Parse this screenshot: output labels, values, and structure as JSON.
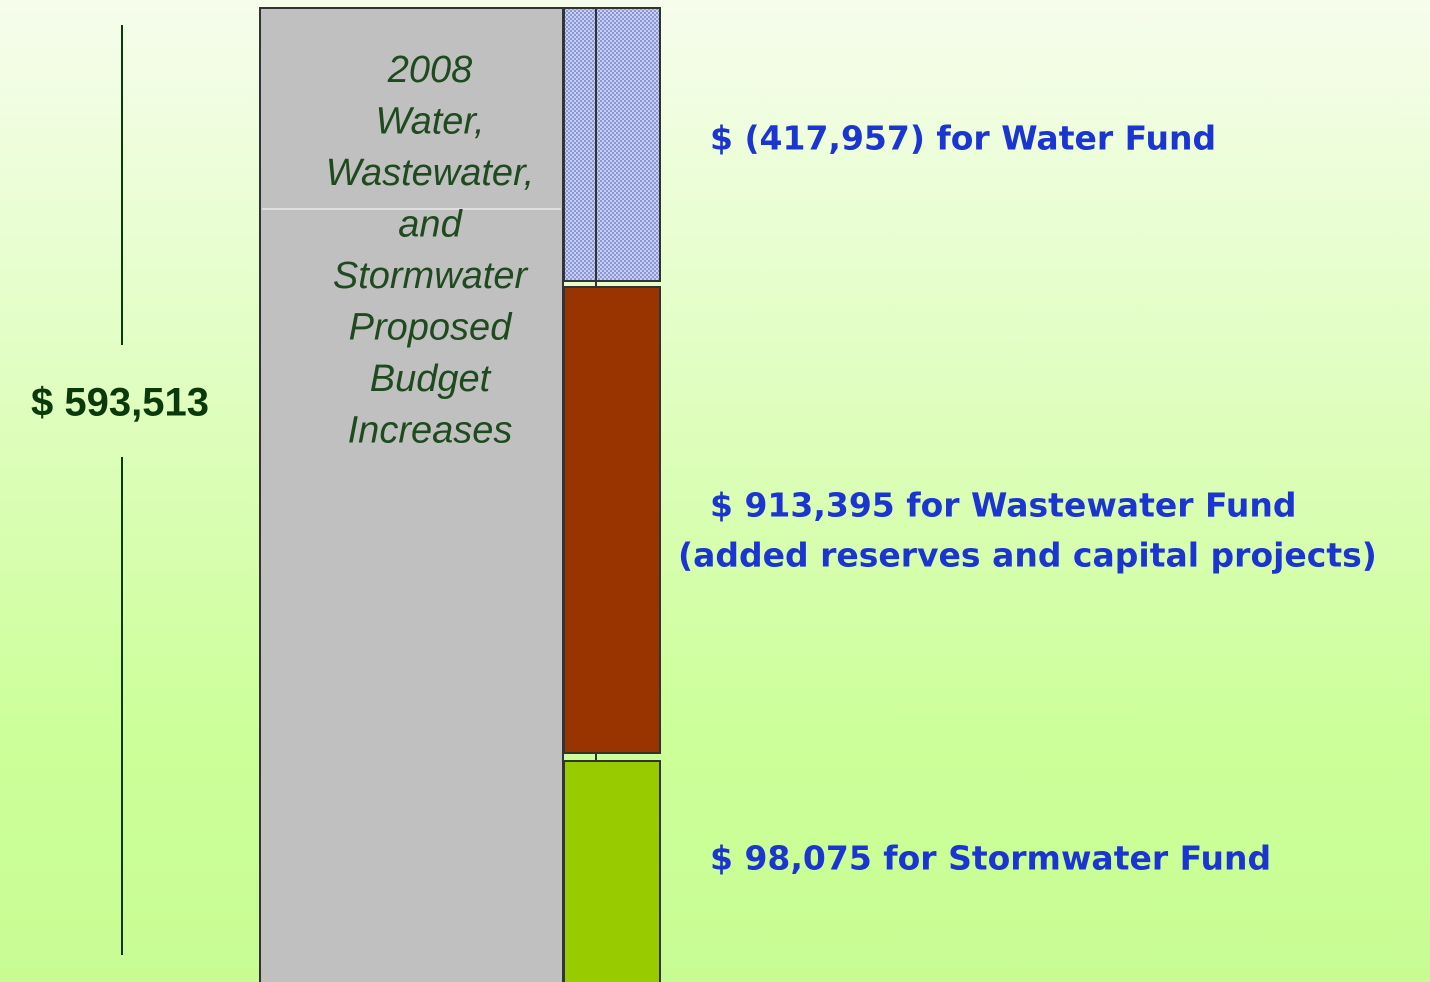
{
  "total": "$ 593,513",
  "column_label": [
    "2008",
    "Water,",
    "Wastewater,",
    "and",
    "Stormwater",
    "Proposed",
    "Budget",
    "Increases"
  ],
  "funds": [
    {
      "lines": [
        "$ (417,957) for Water Fund"
      ]
    },
    {
      "lines": [
        "$ 913,395 for Wastewater Fund",
        "(added reserves and capital projects)"
      ]
    },
    {
      "lines": [
        "$ 98,075 for Stormwater Fund"
      ]
    }
  ]
}
